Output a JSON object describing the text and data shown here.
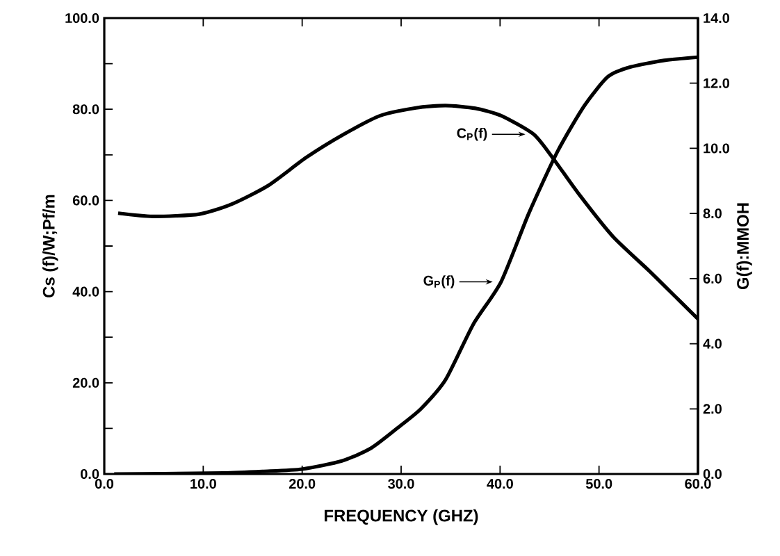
{
  "chart_data": {
    "type": "line",
    "xlabel": "FREQUENCY (GHZ)",
    "ylabel": "Cs (f)/W;Pf/m",
    "y2label": "G(f):MMOH",
    "xlim": [
      0,
      60
    ],
    "ylim": [
      0,
      100
    ],
    "y2lim": [
      0,
      14
    ],
    "xticks": [
      {
        "value": 0,
        "label": "0.0"
      },
      {
        "value": 10,
        "label": "10.0"
      },
      {
        "value": 20,
        "label": "20.0"
      },
      {
        "value": 30,
        "label": "30.0"
      },
      {
        "value": 40,
        "label": "40.0"
      },
      {
        "value": 50,
        "label": "50.0"
      },
      {
        "value": 60,
        "label": "60.0"
      }
    ],
    "yticks": [
      {
        "value": 0,
        "label": "0.0"
      },
      {
        "value": 10,
        "label": null
      },
      {
        "value": 20,
        "label": "20.0"
      },
      {
        "value": 30,
        "label": null
      },
      {
        "value": 40,
        "label": "40.0"
      },
      {
        "value": 50,
        "label": null
      },
      {
        "value": 60,
        "label": "60.0"
      },
      {
        "value": 70,
        "label": null
      },
      {
        "value": 80,
        "label": "80.0"
      },
      {
        "value": 90,
        "label": null
      },
      {
        "value": 100,
        "label": "100.0"
      }
    ],
    "y2ticks": [
      {
        "value": 0,
        "label": "0.0"
      },
      {
        "value": 2,
        "label": "2.0"
      },
      {
        "value": 4,
        "label": "4.0"
      },
      {
        "value": 6,
        "label": "6.0"
      },
      {
        "value": 8,
        "label": "8.0"
      },
      {
        "value": 10,
        "label": "10.0"
      },
      {
        "value": 12,
        "label": "12.0"
      },
      {
        "value": 14,
        "label": "14.0"
      }
    ],
    "series": [
      {
        "color": "#000000",
        "x": [
          1.4,
          4.9,
          9.6,
          12.9,
          16.6,
          20.4,
          24.2,
          27.9,
          31.5,
          34.5,
          37.5,
          40.1,
          43.4,
          45.3,
          48.0,
          51.4,
          55.1,
          57.9,
          60.0
        ],
        "values": [
          57.2,
          56.5,
          57.0,
          59.2,
          63.3,
          69.4,
          74.5,
          78.6,
          80.3,
          80.8,
          80.2,
          78.6,
          74.5,
          69.4,
          61.3,
          52.1,
          44.5,
          38.5,
          34.0
        ]
      },
      {
        "color": "#000000",
        "axis": "y2",
        "x": [
          1.0,
          6.0,
          12.0,
          16.0,
          20.0,
          24.0,
          27.0,
          30.0,
          32.0,
          34.5,
          37.3,
          40.1,
          42.9,
          45.8,
          48.5,
          50.9,
          53.2,
          56.6,
          60.0
        ],
        "values": [
          0.0,
          0.01,
          0.03,
          0.08,
          0.15,
          0.4,
          0.8,
          1.5,
          2.0,
          2.9,
          4.6,
          5.9,
          8.0,
          9.9,
          11.3,
          12.2,
          12.5,
          12.7,
          12.8
        ]
      }
    ],
    "annotations": [
      "C$_{P}$(f)",
      "G$_{P}$(f)"
    ],
    "line_style": "solid",
    "marker": "none",
    "grid": false
  }
}
